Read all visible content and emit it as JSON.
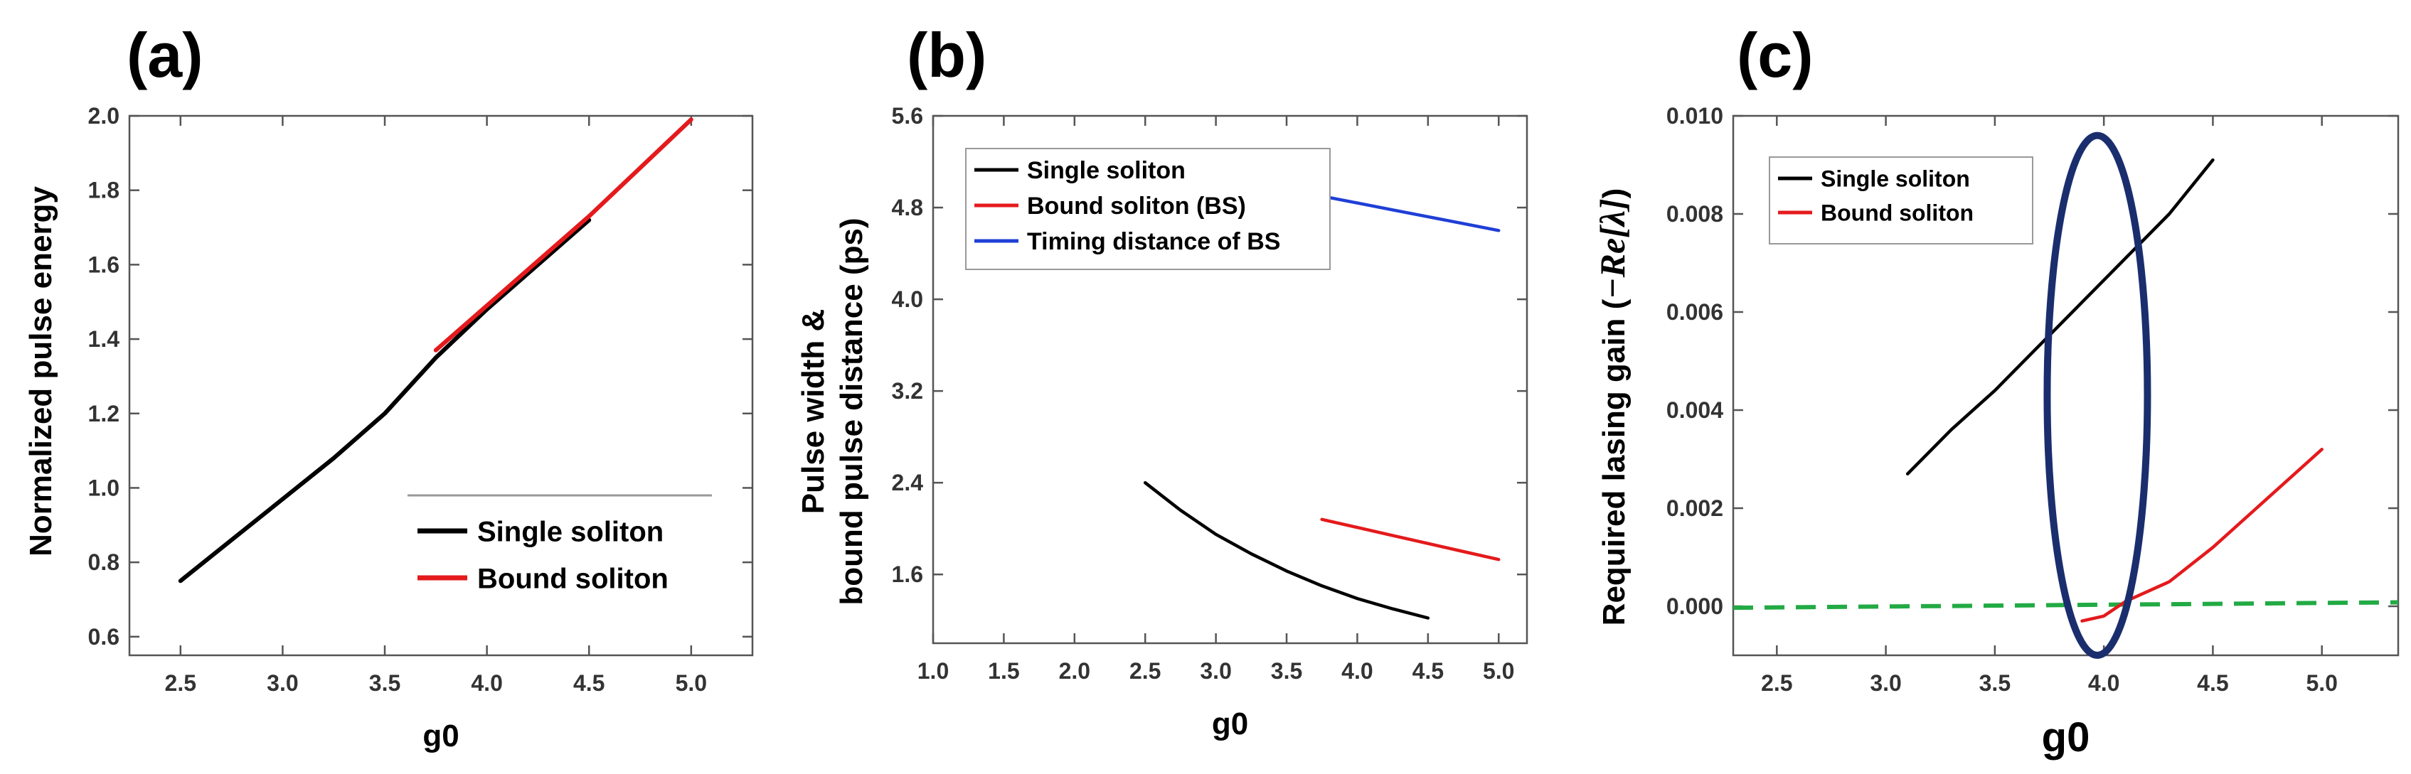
{
  "chart_data": [
    {
      "panel_label": "(a)",
      "type": "line",
      "xlabel": "g0",
      "ylabel": "Normalized pulse energy",
      "xlim": [
        2.25,
        5.3
      ],
      "ylim": [
        0.55,
        2.0
      ],
      "xticks": [
        2.5,
        3.0,
        3.5,
        4.0,
        4.5,
        5.0
      ],
      "yticks": [
        0.6,
        0.8,
        1.0,
        1.2,
        1.4,
        1.6,
        1.8,
        2.0
      ],
      "xtick_labels": [
        "2.5",
        "3.0",
        "3.5",
        "4.0",
        "4.5",
        "5.0"
      ],
      "ytick_labels": [
        "0.6",
        "0.8",
        "1.0",
        "1.2",
        "1.4",
        "1.6",
        "1.8",
        "2.0"
      ],
      "legend_position": "bottom-right",
      "series": [
        {
          "name": "Single soliton",
          "color": "#000000",
          "x": [
            2.5,
            2.75,
            3.0,
            3.25,
            3.5,
            3.75,
            4.0,
            4.25,
            4.5
          ],
          "y": [
            0.75,
            0.86,
            0.97,
            1.08,
            1.2,
            1.35,
            1.48,
            1.6,
            1.72
          ]
        },
        {
          "name": "Bound soliton",
          "color": "#e41a1c",
          "x": [
            3.75,
            4.0,
            4.25,
            4.5,
            4.75,
            5.0
          ],
          "y": [
            1.37,
            1.49,
            1.61,
            1.73,
            1.86,
            1.99
          ]
        }
      ]
    },
    {
      "panel_label": "(b)",
      "type": "line",
      "xlabel": "g0",
      "ylabel_line1": "Pulse width &",
      "ylabel_line2": "bound pulse distance (ps)",
      "xlim": [
        1.0,
        5.2
      ],
      "ylim": [
        1.0,
        5.6
      ],
      "xticks": [
        1.0,
        1.5,
        2.0,
        2.5,
        3.0,
        3.5,
        4.0,
        4.5,
        5.0
      ],
      "yticks": [
        1.6,
        2.4,
        3.2,
        4.0,
        4.8,
        5.6
      ],
      "xtick_labels": [
        "1.0",
        "1.5",
        "2.0",
        "2.5",
        "3.0",
        "3.5",
        "4.0",
        "4.5",
        "5.0"
      ],
      "ytick_labels": [
        "1.6",
        "2.4",
        "3.2",
        "4.0",
        "4.8",
        "5.6"
      ],
      "legend_position": "top-left",
      "series": [
        {
          "name": "Single soliton",
          "color": "#000000",
          "x": [
            2.5,
            2.75,
            3.0,
            3.25,
            3.5,
            3.75,
            4.0,
            4.25,
            4.5
          ],
          "y": [
            2.4,
            2.16,
            1.95,
            1.78,
            1.63,
            1.5,
            1.39,
            1.3,
            1.22
          ]
        },
        {
          "name": "Bound soliton (BS)",
          "color": "#e41a1c",
          "x": [
            3.75,
            4.0,
            4.25,
            4.5,
            4.75,
            5.0
          ],
          "y": [
            2.08,
            2.01,
            1.94,
            1.87,
            1.8,
            1.73
          ]
        },
        {
          "name": "Timing distance of BS",
          "color": "#1f3fd6",
          "x": [
            3.75,
            4.0,
            4.25,
            4.5,
            4.75,
            5.0
          ],
          "y": [
            4.9,
            4.84,
            4.78,
            4.72,
            4.66,
            4.6
          ]
        }
      ]
    },
    {
      "panel_label": "(c)",
      "type": "line",
      "xlabel": "g0",
      "ylabel_prefix": "Required lasing gain (",
      "ylabel_math": "−Re[λ]",
      "ylabel_suffix": ")",
      "xlim": [
        2.3,
        5.35
      ],
      "ylim": [
        -0.001,
        0.01
      ],
      "xticks": [
        2.5,
        3.0,
        3.5,
        4.0,
        4.5,
        5.0
      ],
      "yticks": [
        0.0,
        0.002,
        0.004,
        0.006,
        0.008,
        0.01
      ],
      "xtick_labels": [
        "2.5",
        "3.0",
        "3.5",
        "4.0",
        "4.5",
        "5.0"
      ],
      "ytick_labels": [
        "0.000",
        "0.002",
        "0.004",
        "0.006",
        "0.008",
        "0.010"
      ],
      "legend_position": "top-left",
      "series": [
        {
          "name": "Single soliton",
          "color": "#000000",
          "x": [
            3.1,
            3.3,
            3.5,
            3.7,
            3.9,
            4.1,
            4.3,
            4.5
          ],
          "y": [
            0.0027,
            0.0036,
            0.0044,
            0.0053,
            0.0062,
            0.0071,
            0.008,
            0.0091
          ]
        },
        {
          "name": "Bound soliton",
          "color": "#e41a1c",
          "x": [
            3.9,
            4.0,
            4.1,
            4.3,
            4.5,
            4.7,
            5.0
          ],
          "y": [
            -0.0003,
            -0.0002,
            0.0001,
            0.0005,
            0.0012,
            0.002,
            0.0032
          ]
        }
      ],
      "reference_line": {
        "color": "#22aa44",
        "x": [
          2.3,
          5.35
        ],
        "y": [
          -3e-05,
          8e-05
        ]
      },
      "highlight_ellipse": {
        "color": "#1a2e6e",
        "center_x": 3.97,
        "center_y": 0.0043,
        "rx": 0.23,
        "ry": 0.0053
      }
    }
  ]
}
